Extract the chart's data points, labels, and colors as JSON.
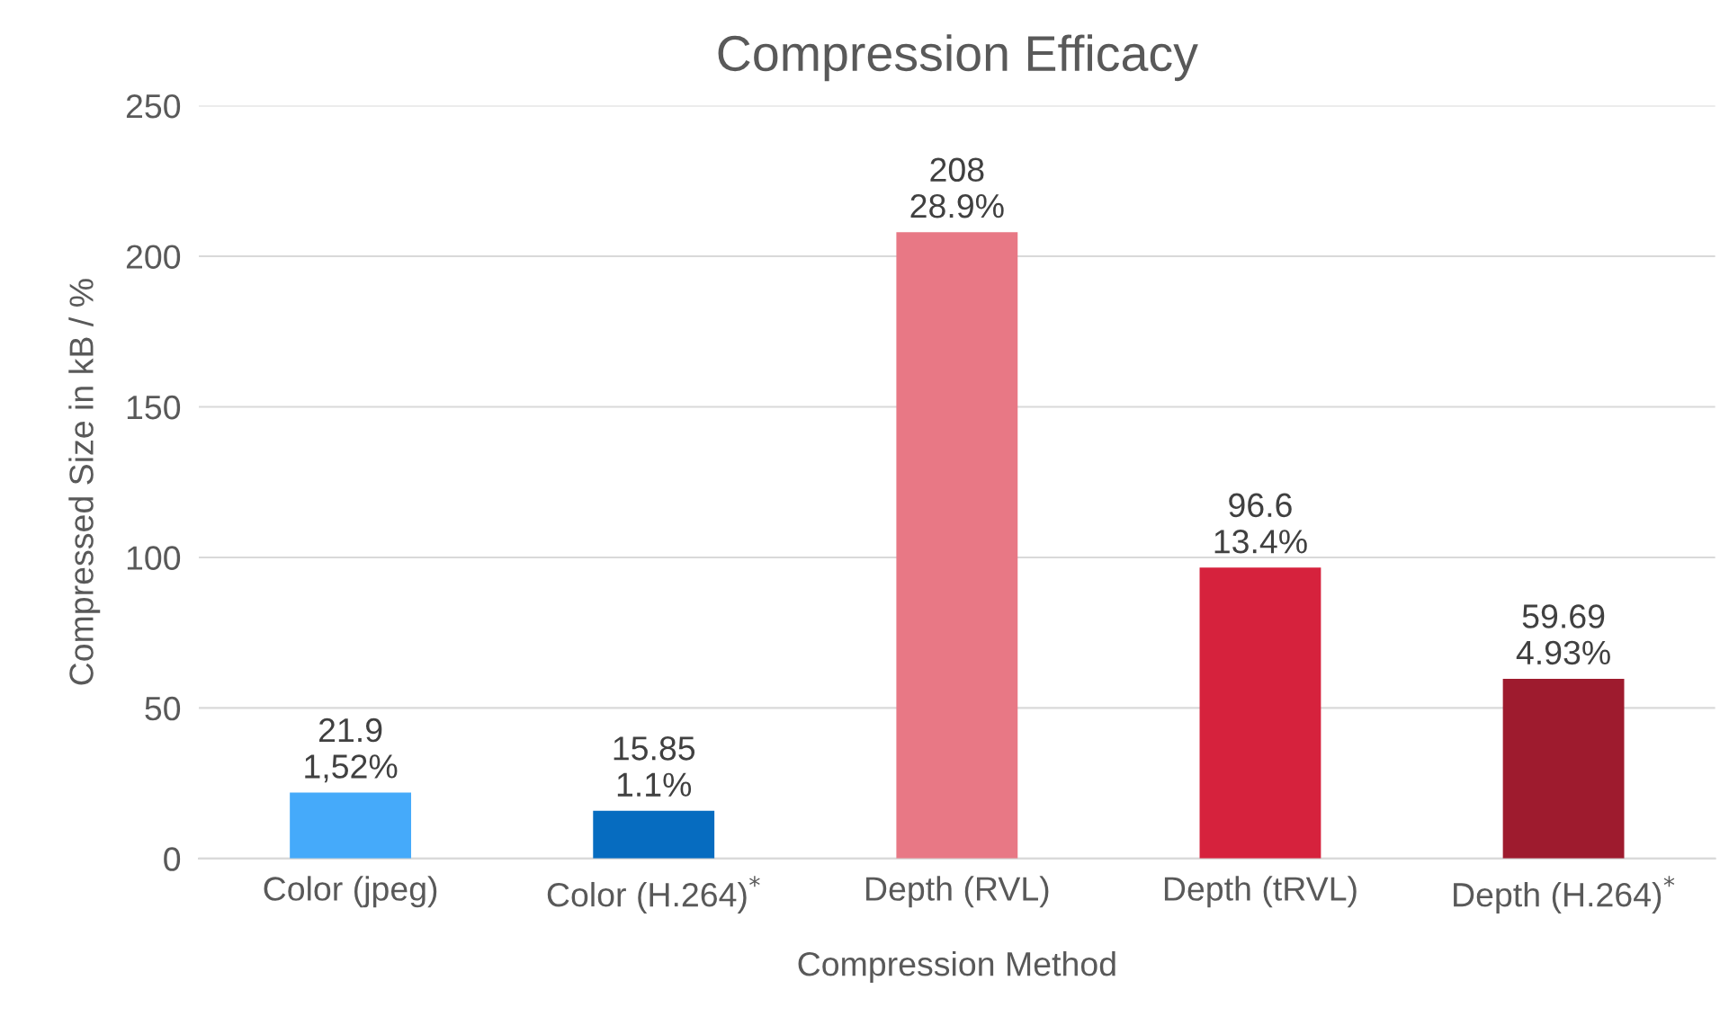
{
  "chart_data": {
    "type": "bar",
    "title": "Compression Efficacy",
    "xlabel": "Compression Method",
    "ylabel": "Compressed Size in kB / %",
    "categories": [
      "Color (jpeg)",
      "Color (H.264)$^{*}$",
      "Depth (RVL)",
      "Depth (tRVL)",
      "Depth (H.264)$^{*}$"
    ],
    "values": [
      21.9,
      15.85,
      208,
      96.6,
      59.69
    ],
    "colors": [
      "#45aafa",
      "#066cc0",
      "#e87885",
      "#d6223d",
      "#9e1b2e"
    ],
    "value_labels": [
      "21.9\n1,52%",
      "15.85\n1.1%",
      "208\n28.9%",
      "96.6\n13.4%",
      "59.69\n4.93%"
    ],
    "ylim": [
      0,
      250
    ],
    "yticks": [
      0,
      50,
      100,
      150,
      200,
      250
    ],
    "grid": "y",
    "legend": false
  }
}
